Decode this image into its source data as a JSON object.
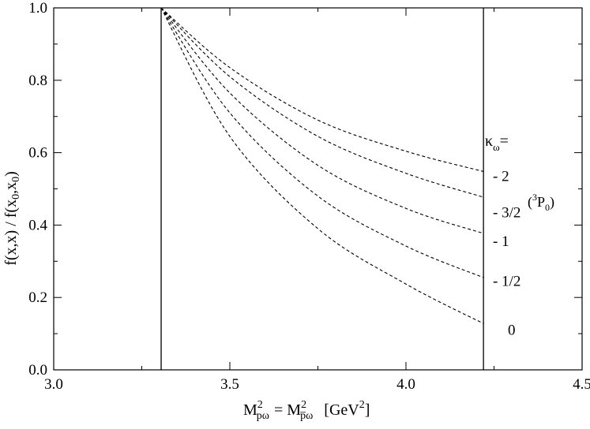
{
  "chart_data": {
    "type": "line",
    "xlabel": "M²pω = M²p̄ω  [GeV²]",
    "ylabel": "f(x,x) / f(x0,x0)",
    "xlim": [
      3.0,
      4.5
    ],
    "ylim": [
      0.0,
      1.0
    ],
    "x_ticks": [
      3.0,
      3.5,
      4.0,
      4.5
    ],
    "x_tick_labels": [
      "3.0",
      "3.5",
      "4.0",
      "4.5"
    ],
    "y_ticks": [
      0.0,
      0.2,
      0.4,
      0.6,
      0.8,
      1.0
    ],
    "y_tick_labels": [
      "0.0",
      "0.2",
      "0.4",
      "0.6",
      "0.8",
      "1.0"
    ],
    "grid": false,
    "vertical_lines": [
      3.305,
      4.22
    ],
    "legend_title": "κω =",
    "series": [
      {
        "name": "- 2",
        "x": [
          3.305,
          3.5,
          3.75,
          4.0,
          4.22
        ],
        "y": [
          1.0,
          0.835,
          0.69,
          0.604,
          0.548
        ]
      },
      {
        "name": "- 3/2  (3P0)",
        "x": [
          3.305,
          3.5,
          3.75,
          4.0,
          4.22
        ],
        "y": [
          1.0,
          0.81,
          0.645,
          0.543,
          0.477
        ]
      },
      {
        "name": "- 1",
        "x": [
          3.305,
          3.5,
          3.75,
          4.0,
          4.22
        ],
        "y": [
          1.0,
          0.765,
          0.565,
          0.446,
          0.377
        ]
      },
      {
        "name": "- 1/2",
        "x": [
          3.305,
          3.5,
          3.75,
          4.0,
          4.22
        ],
        "y": [
          1.0,
          0.71,
          0.48,
          0.342,
          0.255
        ]
      },
      {
        "name": "0",
        "x": [
          3.305,
          3.5,
          3.75,
          4.0,
          4.22
        ],
        "y": [
          1.0,
          0.645,
          0.39,
          0.237,
          0.128
        ]
      }
    ],
    "legend_labels": [
      {
        "label": "- 2",
        "y": 0.535
      },
      {
        "label": "- 3/2",
        "y": 0.435
      },
      {
        "label": "- 1",
        "y": 0.355
      },
      {
        "label": "- 1/2",
        "y": 0.245
      },
      {
        "label": "0",
        "y": 0.11
      }
    ]
  }
}
